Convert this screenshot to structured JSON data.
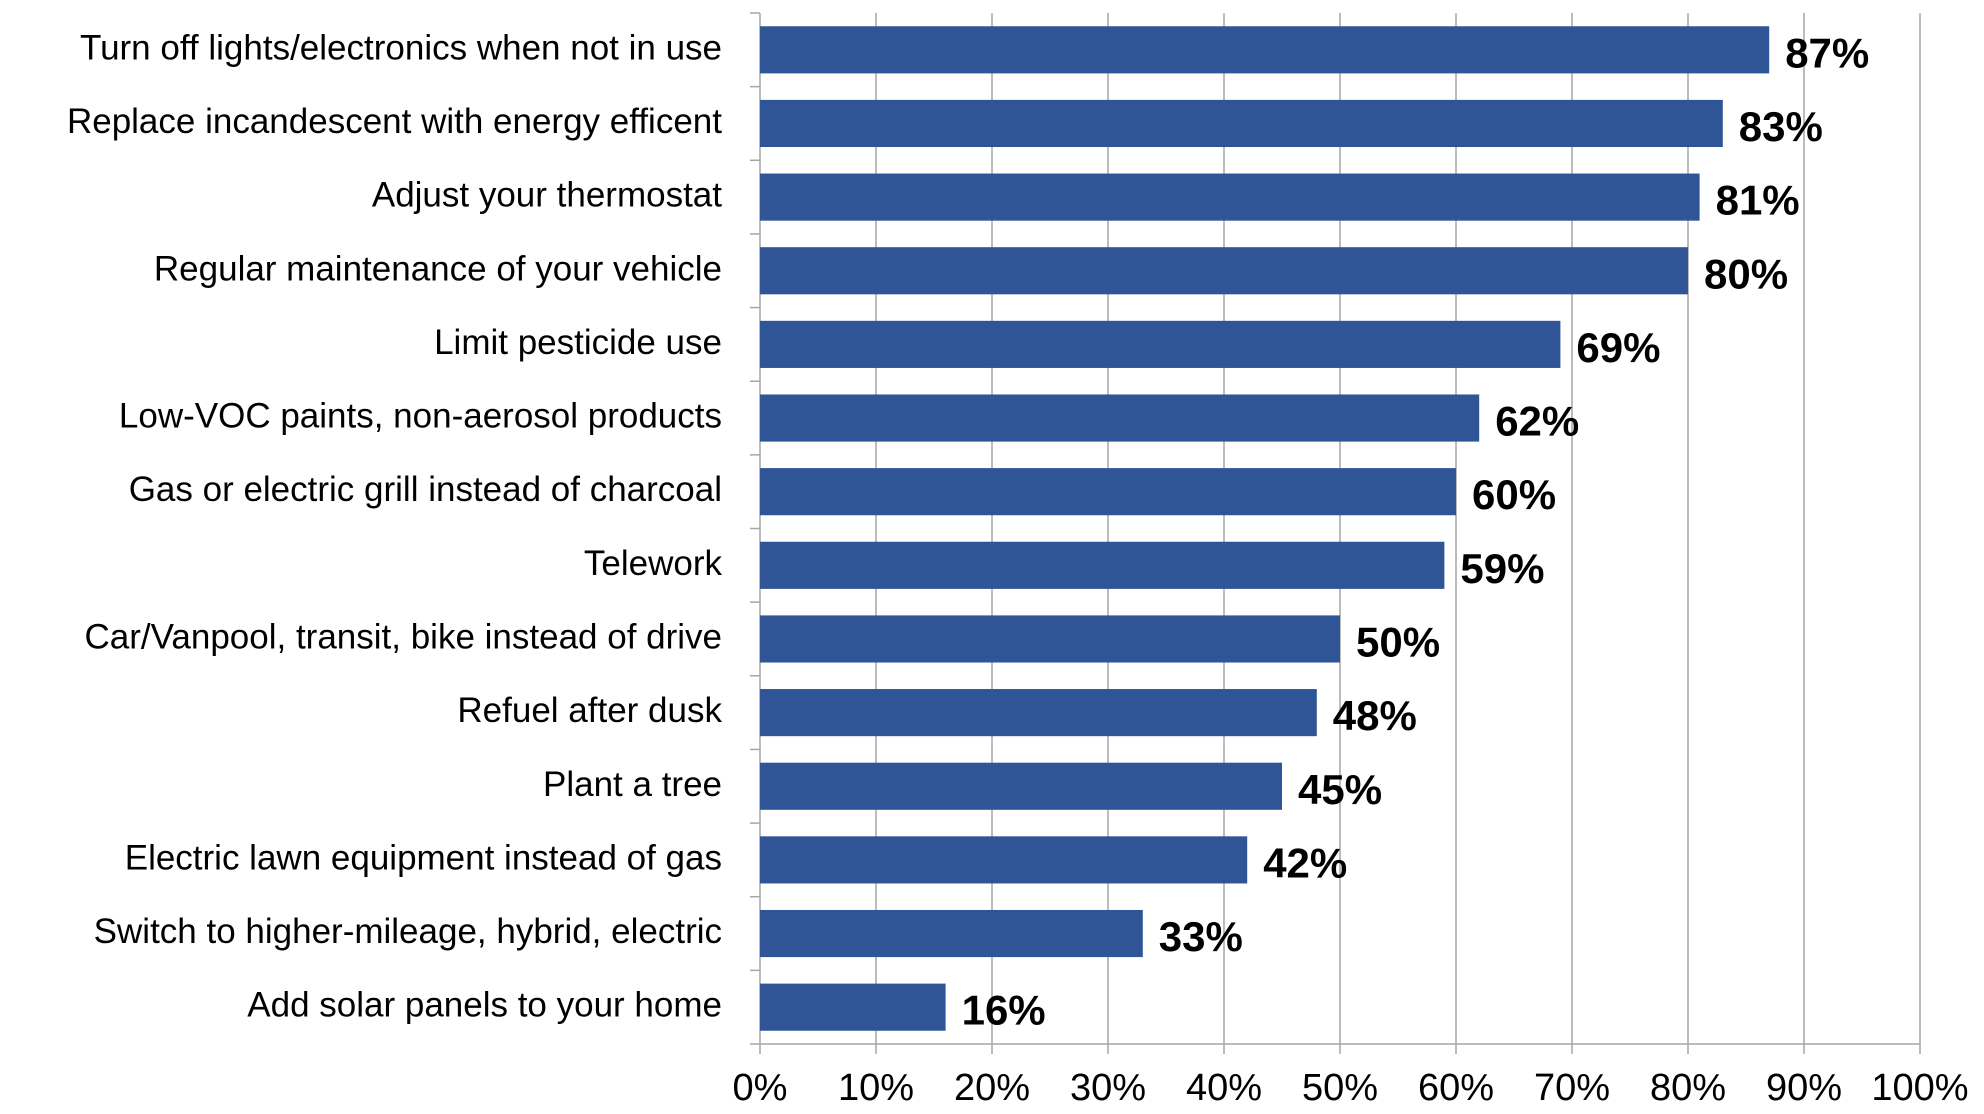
{
  "chart_data": {
    "type": "bar",
    "orientation": "horizontal",
    "title": "",
    "xlabel": "",
    "ylabel": "",
    "categories": [
      "Turn off lights/electronics when not in use",
      "Replace incandescent with energy efficent",
      "Adjust your thermostat",
      "Regular maintenance of your vehicle",
      "Limit pesticide use",
      "Low-VOC paints, non-aerosol products",
      "Gas or electric grill instead of charcoal",
      "Telework",
      "Car/Vanpool, transit, bike instead of drive",
      "Refuel after dusk",
      "Plant a tree",
      "Electric lawn equipment instead of gas",
      "Switch to higher-mileage, hybrid, electric",
      "Add solar panels to your home"
    ],
    "values": [
      87,
      83,
      81,
      80,
      69,
      62,
      60,
      59,
      50,
      48,
      45,
      42,
      33,
      16
    ],
    "value_labels": [
      "87%",
      "83%",
      "81%",
      "80%",
      "69%",
      "62%",
      "60%",
      "59%",
      "50%",
      "48%",
      "45%",
      "42%",
      "33%",
      "16%"
    ],
    "xlim": [
      0,
      100
    ],
    "x_ticks": [
      0,
      10,
      20,
      30,
      40,
      50,
      60,
      70,
      80,
      90,
      100
    ],
    "x_tick_labels": [
      "0%",
      "10%",
      "20%",
      "30%",
      "40%",
      "50%",
      "60%",
      "70%",
      "80%",
      "90%",
      "100%"
    ],
    "grid": "vertical",
    "legend": "none",
    "colors": {
      "bar": "#2f5597",
      "grid": "#a6a6a6",
      "axis": "#a6a6a6",
      "text": "#000000"
    }
  }
}
